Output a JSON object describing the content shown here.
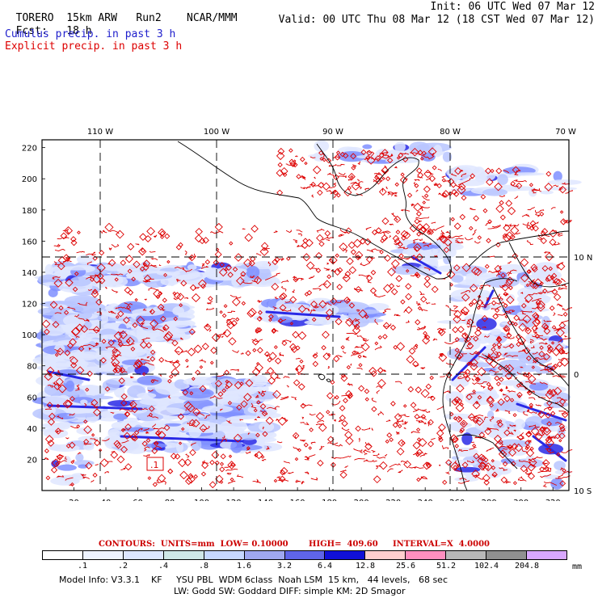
{
  "header": {
    "model_name": "TORERO",
    "resolution": "15km ARW",
    "run": "Run2",
    "org": "NCAR/MMM",
    "init": "Init: 06 UTC Wed 07 Mar 12",
    "fcst_label": "Fcst:",
    "fcst_value": "18 h",
    "valid": "Valid: 00 UTC Thu 08 Mar 12 (18 CST Wed 07 Mar 12)"
  },
  "legend": {
    "cumulus": "Cumulus precip. in past 3 h",
    "explicit": "Explicit precip. in past 3 h",
    "cumulus_color": "#1e1ecc",
    "explicit_color": "#dd0000"
  },
  "map": {
    "lon_labels": [
      "110 W",
      "100 W",
      "90 W",
      "80 W",
      "70 W"
    ],
    "lat_labels": [
      "10 N",
      "0",
      "10 S"
    ],
    "y_ticks": [
      "220",
      "200",
      "180",
      "160",
      "140",
      "120",
      "100",
      "80",
      "60",
      "40",
      "20"
    ],
    "x_ticks": [
      "20",
      "40",
      "60",
      "80",
      "100",
      "120",
      "140",
      "160",
      "180",
      "200",
      "220",
      "240",
      "260",
      "280",
      "300",
      "320"
    ],
    "marker_label": ".1",
    "explicit_color": "#dd0000",
    "cumulus_colors": [
      "#dfe6ff",
      "#b8c6ff",
      "#7f8fff",
      "#2a2ae6"
    ]
  },
  "contours": {
    "units": "CONTOURS:  UNITS=mm  LOW= 0.10000",
    "high": "HIGH=  409.60",
    "interval": "INTERVAL=X  4.0000"
  },
  "colorbar": {
    "labels": [
      ".1",
      ".2",
      ".4",
      ".8",
      "1.6",
      "3.2",
      "6.4",
      "12.8",
      "25.6",
      "51.2",
      "102.4",
      "204.8"
    ],
    "unit": "mm",
    "colors": [
      "#ffffff",
      "#eef3ff",
      "#dde6ff",
      "#cfe6e6",
      "#c6d8ff",
      "#9fa8f0",
      "#5f65e8",
      "#1010d8",
      "#ffcfcf",
      "#ff8fbf",
      "#b8b8b8",
      "#909090",
      "#d9a8ff"
    ]
  },
  "model_info": {
    "line1": "Model Info: V3.3.1    KF     YSU PBL  WDM 6class  Noah LSM  15 km,   44 levels,   68 sec",
    "line2": "LW: Godd SW: Goddard DIFF: simple KM: 2D Smagor"
  }
}
